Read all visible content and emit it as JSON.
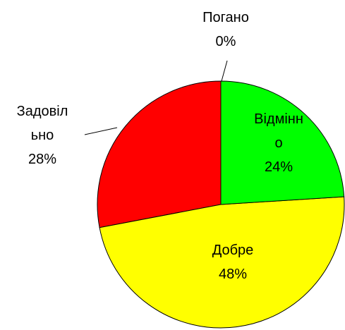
{
  "chart_data": {
    "type": "pie",
    "categories": [
      "Відмінно",
      "Добре",
      "Задовільно",
      "Погано"
    ],
    "values": [
      24,
      48,
      28,
      0
    ],
    "value_labels": [
      "24%",
      "48%",
      "28%",
      "0%"
    ],
    "colors": [
      "#00ff00",
      "#ffff00",
      "#ff0000",
      "#000000"
    ]
  }
}
